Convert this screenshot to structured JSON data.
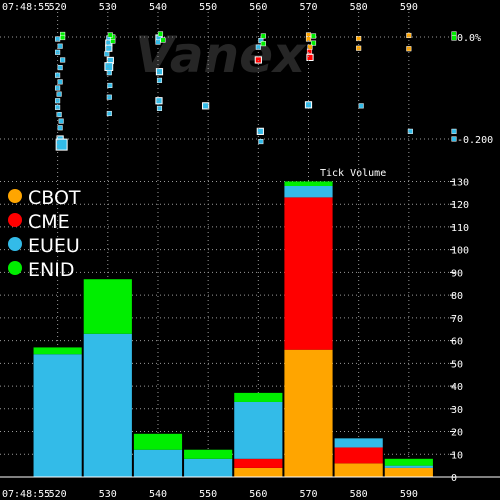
{
  "watermark": "Vanex",
  "time_label": "07:48:55",
  "colors": {
    "CBOT": "#ffa500",
    "CME": "#ff0000",
    "EUEU": "#33bbe8",
    "ENID": "#00ee00",
    "grid": "#9a9a9a",
    "axis": "#ffffff"
  },
  "chart_data": [
    {
      "type": "bar",
      "title": "Tick Volume",
      "x_tick_labels": [
        "520",
        "530",
        "540",
        "550",
        "560",
        "570",
        "580",
        "590"
      ],
      "x_ticks": [
        520,
        530,
        540,
        550,
        560,
        570,
        580,
        590
      ],
      "bin_edges": [
        515,
        525,
        535,
        545,
        555,
        565,
        575,
        585,
        595
      ],
      "categories": [
        "520",
        "530",
        "540",
        "550",
        "560",
        "570",
        "580",
        "590"
      ],
      "series": [
        {
          "name": "CBOT",
          "values": [
            0,
            0,
            0,
            0,
            4,
            56,
            6,
            4
          ]
        },
        {
          "name": "CME",
          "values": [
            0,
            0,
            0,
            0,
            4,
            67,
            7,
            0
          ]
        },
        {
          "name": "EUEU",
          "values": [
            54,
            63,
            12,
            8,
            25,
            5,
            4,
            1
          ]
        },
        {
          "name": "ENID",
          "values": [
            3,
            24,
            7,
            4,
            4,
            2,
            0,
            3
          ]
        }
      ],
      "y_ticks": [
        0,
        10,
        20,
        30,
        40,
        50,
        60,
        70,
        80,
        90,
        100,
        110,
        120,
        130
      ],
      "y_tick_labels": [
        "0",
        "10",
        "20",
        "30",
        "40",
        "50",
        "60",
        "70",
        "80",
        "90",
        "100",
        "110",
        "120",
        "130"
      ],
      "ylim": [
        0,
        139
      ],
      "xlim": [
        512.5,
        599
      ],
      "legend": {
        "placement": "top-left",
        "entries": [
          "CBOT",
          "CME",
          "EUEU",
          "ENID"
        ]
      },
      "grid": true
    },
    {
      "type": "scatter",
      "xlim": [
        512.5,
        599
      ],
      "ylim": [
        -0.215,
        0.01
      ],
      "y_ticks": [
        0,
        -0.2
      ],
      "y_tick_labels": [
        "0.0%",
        "-0.200"
      ],
      "grid": true,
      "series": [
        {
          "name": "EUEU",
          "points": [
            [
              520,
              -0.004,
              1
            ],
            [
              520.5,
              -0.018,
              1
            ],
            [
              520,
              -0.03,
              1
            ],
            [
              521,
              -0.045,
              1
            ],
            [
              520.5,
              -0.06,
              1
            ],
            [
              520,
              -0.075,
              1
            ],
            [
              520.5,
              -0.088,
              1
            ],
            [
              520,
              -0.1,
              1
            ],
            [
              520.3,
              -0.112,
              1
            ],
            [
              520,
              -0.125,
              1
            ],
            [
              520,
              -0.138,
              1
            ],
            [
              520.3,
              -0.152,
              1
            ],
            [
              520.7,
              -0.165,
              1
            ],
            [
              520.5,
              -0.178,
              1
            ],
            [
              520.5,
              -0.2,
              2
            ],
            [
              520.8,
              -0.211,
              5
            ],
            [
              530.2,
              -0.002,
              1
            ],
            [
              530.2,
              -0.012,
              2
            ],
            [
              530.2,
              -0.022,
              2
            ],
            [
              529.8,
              -0.033,
              1
            ],
            [
              530.5,
              -0.046,
              2
            ],
            [
              530.2,
              -0.058,
              3
            ],
            [
              530.3,
              -0.07,
              1
            ],
            [
              530.4,
              -0.095,
              1
            ],
            [
              530.3,
              -0.118,
              1
            ],
            [
              530.3,
              -0.15,
              1
            ],
            [
              540.2,
              -0.002,
              2
            ],
            [
              540,
              -0.01,
              1
            ],
            [
              540.3,
              -0.068,
              2
            ],
            [
              540.3,
              -0.085,
              1
            ],
            [
              540.2,
              -0.125,
              2
            ],
            [
              540.3,
              -0.14,
              1
            ],
            [
              549.5,
              -0.135,
              2
            ],
            [
              560,
              -0.02,
              1
            ],
            [
              560.5,
              -0.007,
              1
            ],
            [
              560.4,
              -0.185,
              2
            ],
            [
              560.5,
              -0.205,
              1
            ],
            [
              570,
              -0.133,
              2
            ],
            [
              580.5,
              -0.135,
              1
            ],
            [
              590.3,
              -0.185,
              1
            ],
            [
              599,
              -0.185,
              1
            ],
            [
              599,
              -0.2,
              1
            ]
          ]
        },
        {
          "name": "ENID",
          "points": [
            [
              521,
              0.005,
              1
            ],
            [
              521,
              -0.001,
              1
            ],
            [
              531,
              -0.008,
              1
            ],
            [
              531,
              0.0,
              1
            ],
            [
              530.5,
              0.004,
              1
            ],
            [
              540.5,
              0.006,
              1
            ],
            [
              541,
              -0.006,
              1
            ],
            [
              561,
              0.002,
              1
            ],
            [
              561,
              -0.013,
              1
            ],
            [
              571,
              0.002,
              1
            ],
            [
              571,
              -0.012,
              1
            ],
            [
              599,
              0.006,
              1
            ],
            [
              599,
              -0.002,
              1
            ]
          ]
        },
        {
          "name": "CME",
          "points": [
            [
              560,
              -0.045,
              2
            ],
            [
              570.3,
              -0.04,
              2
            ],
            [
              570.2,
              -0.028,
              1
            ]
          ]
        },
        {
          "name": "CBOT",
          "points": [
            [
              570,
              0.004,
              1
            ],
            [
              570,
              -0.004,
              1
            ],
            [
              570.3,
              -0.02,
              1
            ],
            [
              580,
              -0.003,
              1
            ],
            [
              580,
              -0.022,
              1
            ],
            [
              590,
              0.003,
              1
            ],
            [
              590,
              -0.023,
              1
            ]
          ]
        }
      ]
    }
  ]
}
